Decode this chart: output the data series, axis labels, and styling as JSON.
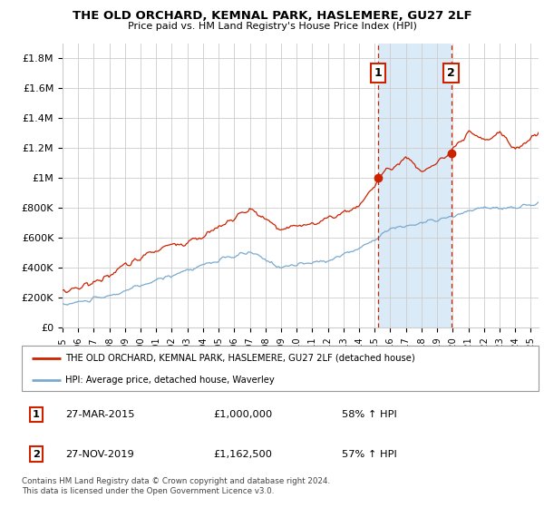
{
  "title": "THE OLD ORCHARD, KEMNAL PARK, HASLEMERE, GU27 2LF",
  "subtitle": "Price paid vs. HM Land Registry's House Price Index (HPI)",
  "ylabel_ticks": [
    "£0",
    "£200K",
    "£400K",
    "£600K",
    "£800K",
    "£1M",
    "£1.2M",
    "£1.4M",
    "£1.6M",
    "£1.8M"
  ],
  "ytick_values": [
    0,
    200000,
    400000,
    600000,
    800000,
    1000000,
    1200000,
    1400000,
    1600000,
    1800000
  ],
  "ylim": [
    0,
    1900000
  ],
  "xlim_start": 1995.0,
  "xlim_end": 2025.5,
  "sale1_x": 2015.23,
  "sale1_y": 1000000,
  "sale2_x": 2019.9,
  "sale2_y": 1162500,
  "red_line_color": "#cc2200",
  "blue_line_color": "#7aaad0",
  "highlight_fill": "#daeaf7",
  "grid_color": "#cccccc",
  "background_color": "#ffffff",
  "legend_line1": "THE OLD ORCHARD, KEMNAL PARK, HASLEMERE, GU27 2LF (detached house)",
  "legend_line2": "HPI: Average price, detached house, Waverley",
  "table_row1": [
    "1",
    "27-MAR-2015",
    "£1,000,000",
    "58% ↑ HPI"
  ],
  "table_row2": [
    "2",
    "27-NOV-2019",
    "£1,162,500",
    "57% ↑ HPI"
  ],
  "footnote": "Contains HM Land Registry data © Crown copyright and database right 2024.\nThis data is licensed under the Open Government Licence v3.0.",
  "xtick_years": [
    1995,
    1996,
    1997,
    1998,
    1999,
    2000,
    2001,
    2002,
    2003,
    2004,
    2005,
    2006,
    2007,
    2008,
    2009,
    2010,
    2011,
    2012,
    2013,
    2014,
    2015,
    2016,
    2017,
    2018,
    2019,
    2020,
    2021,
    2022,
    2023,
    2024,
    2025
  ]
}
